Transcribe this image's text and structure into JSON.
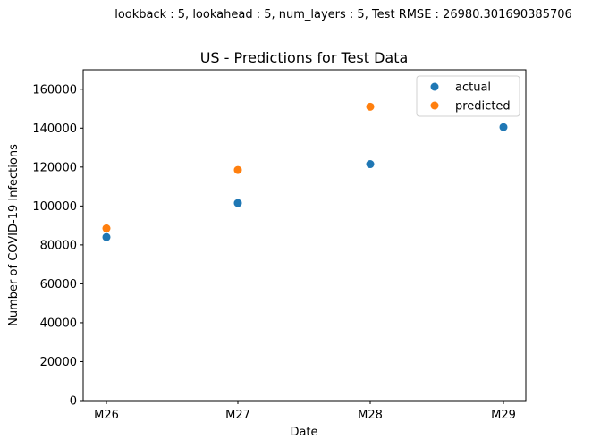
{
  "chart_data": {
    "type": "scatter",
    "suptitle": "lookback : 5, lookahead : 5, num_layers : 5, Test RMSE : 26980.301690385706",
    "title": "US - Predictions for Test Data",
    "xlabel": "Date",
    "ylabel": "Number of COVID-19 Infections",
    "categories": [
      "M26",
      "M27",
      "M28",
      "M29"
    ],
    "ylim": [
      0,
      170000
    ],
    "yticks": [
      0,
      20000,
      40000,
      60000,
      80000,
      100000,
      120000,
      140000,
      160000
    ],
    "grid": false,
    "legend_position": "top-right",
    "series": [
      {
        "name": "actual",
        "color": "#1f77b4",
        "points": [
          {
            "x": "M26",
            "y": 84000
          },
          {
            "x": "M27",
            "y": 101500
          },
          {
            "x": "M28",
            "y": 121500
          },
          {
            "x": "M29",
            "y": 140500
          }
        ]
      },
      {
        "name": "predicted",
        "color": "#ff7f0e",
        "points": [
          {
            "x": "M26",
            "y": 88500
          },
          {
            "x": "M27",
            "y": 118500
          },
          {
            "x": "M28",
            "y": 151000
          }
        ]
      }
    ]
  }
}
